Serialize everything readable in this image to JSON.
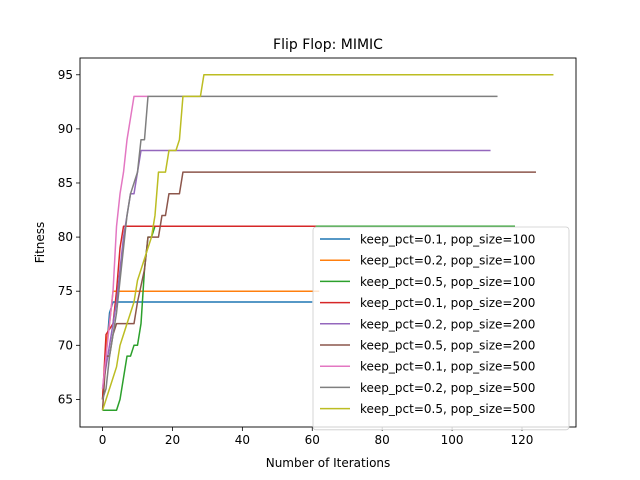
{
  "chart_data": {
    "type": "line",
    "title": "Flip Flop: MIMIC",
    "xlabel": "Number of Iterations",
    "ylabel": "Fitness",
    "xlim": [
      -6.45,
      135.45
    ],
    "ylim": [
      62.45,
      96.55
    ],
    "xticks": [
      0,
      20,
      40,
      60,
      80,
      100,
      120
    ],
    "yticks": [
      65,
      70,
      75,
      80,
      85,
      90,
      95
    ],
    "grid": false,
    "legend_position": "lower-right",
    "series": [
      {
        "name": "keep_pct=0.1, pop_size=100",
        "color": "#1f77b4",
        "points": [
          [
            0,
            65
          ],
          [
            1,
            69
          ],
          [
            2,
            73
          ],
          [
            3,
            74
          ],
          [
            60,
            74
          ]
        ]
      },
      {
        "name": "keep_pct=0.2, pop_size=100",
        "color": "#ff7f0e",
        "points": [
          [
            0,
            65
          ],
          [
            1,
            70
          ],
          [
            2,
            72
          ],
          [
            3,
            75
          ],
          [
            62,
            75
          ]
        ]
      },
      {
        "name": "keep_pct=0.5, pop_size=100",
        "color": "#2ca02c",
        "points": [
          [
            0,
            64
          ],
          [
            4,
            64
          ],
          [
            5,
            65
          ],
          [
            6,
            67
          ],
          [
            7,
            69
          ],
          [
            8,
            69
          ],
          [
            9,
            70
          ],
          [
            10,
            70
          ],
          [
            11,
            72
          ],
          [
            12,
            77
          ],
          [
            13,
            80
          ],
          [
            14,
            80
          ],
          [
            15,
            81
          ],
          [
            118,
            81
          ]
        ]
      },
      {
        "name": "keep_pct=0.1, pop_size=200",
        "color": "#d62728",
        "points": [
          [
            0,
            65
          ],
          [
            1,
            71
          ],
          [
            3,
            72
          ],
          [
            4,
            75
          ],
          [
            5,
            79
          ],
          [
            6,
            81
          ],
          [
            61,
            81
          ]
        ]
      },
      {
        "name": "keep_pct=0.2, pop_size=200",
        "color": "#9467bd",
        "points": [
          [
            0,
            66
          ],
          [
            1,
            68
          ],
          [
            2,
            70
          ],
          [
            3,
            72
          ],
          [
            4,
            74
          ],
          [
            5,
            77
          ],
          [
            6,
            80
          ],
          [
            7,
            82
          ],
          [
            8,
            84
          ],
          [
            9,
            84
          ],
          [
            10,
            86
          ],
          [
            11,
            88
          ],
          [
            111,
            88
          ]
        ]
      },
      {
        "name": "keep_pct=0.5, pop_size=200",
        "color": "#8c564b",
        "points": [
          [
            0,
            64
          ],
          [
            1,
            69
          ],
          [
            2,
            69
          ],
          [
            3,
            71
          ],
          [
            4,
            72
          ],
          [
            9,
            72
          ],
          [
            10,
            74
          ],
          [
            12,
            77
          ],
          [
            13,
            80
          ],
          [
            16,
            80
          ],
          [
            17,
            82
          ],
          [
            18,
            82
          ],
          [
            19,
            84
          ],
          [
            22,
            84
          ],
          [
            23,
            86
          ],
          [
            124,
            86
          ]
        ]
      },
      {
        "name": "keep_pct=0.1, pop_size=500",
        "color": "#e377c2",
        "points": [
          [
            0,
            66
          ],
          [
            1,
            69
          ],
          [
            2,
            72
          ],
          [
            3,
            75
          ],
          [
            4,
            81
          ],
          [
            5,
            84
          ],
          [
            6,
            86
          ],
          [
            7,
            89
          ],
          [
            8,
            91
          ],
          [
            9,
            93
          ],
          [
            13,
            93
          ]
        ]
      },
      {
        "name": "keep_pct=0.2, pop_size=500",
        "color": "#7f7f7f",
        "points": [
          [
            0,
            65
          ],
          [
            1,
            66
          ],
          [
            2,
            69
          ],
          [
            3,
            71
          ],
          [
            4,
            73
          ],
          [
            5,
            76
          ],
          [
            6,
            79
          ],
          [
            7,
            82
          ],
          [
            8,
            84
          ],
          [
            9,
            85
          ],
          [
            10,
            86
          ],
          [
            11,
            89
          ],
          [
            12,
            89
          ],
          [
            13,
            93
          ],
          [
            113,
            93
          ]
        ]
      },
      {
        "name": "keep_pct=0.5, pop_size=500",
        "color": "#bcbd22",
        "points": [
          [
            0,
            64
          ],
          [
            4,
            68
          ],
          [
            5,
            70
          ],
          [
            6,
            71
          ],
          [
            7,
            72
          ],
          [
            8,
            73
          ],
          [
            9,
            74
          ],
          [
            10,
            76
          ],
          [
            11,
            77
          ],
          [
            12,
            78
          ],
          [
            13,
            79
          ],
          [
            14,
            80
          ],
          [
            15,
            82
          ],
          [
            16,
            86
          ],
          [
            18,
            86
          ],
          [
            19,
            88
          ],
          [
            21,
            88
          ],
          [
            22,
            89
          ],
          [
            23,
            93
          ],
          [
            28,
            93
          ],
          [
            29,
            95
          ],
          [
            129,
            95
          ]
        ]
      }
    ]
  }
}
